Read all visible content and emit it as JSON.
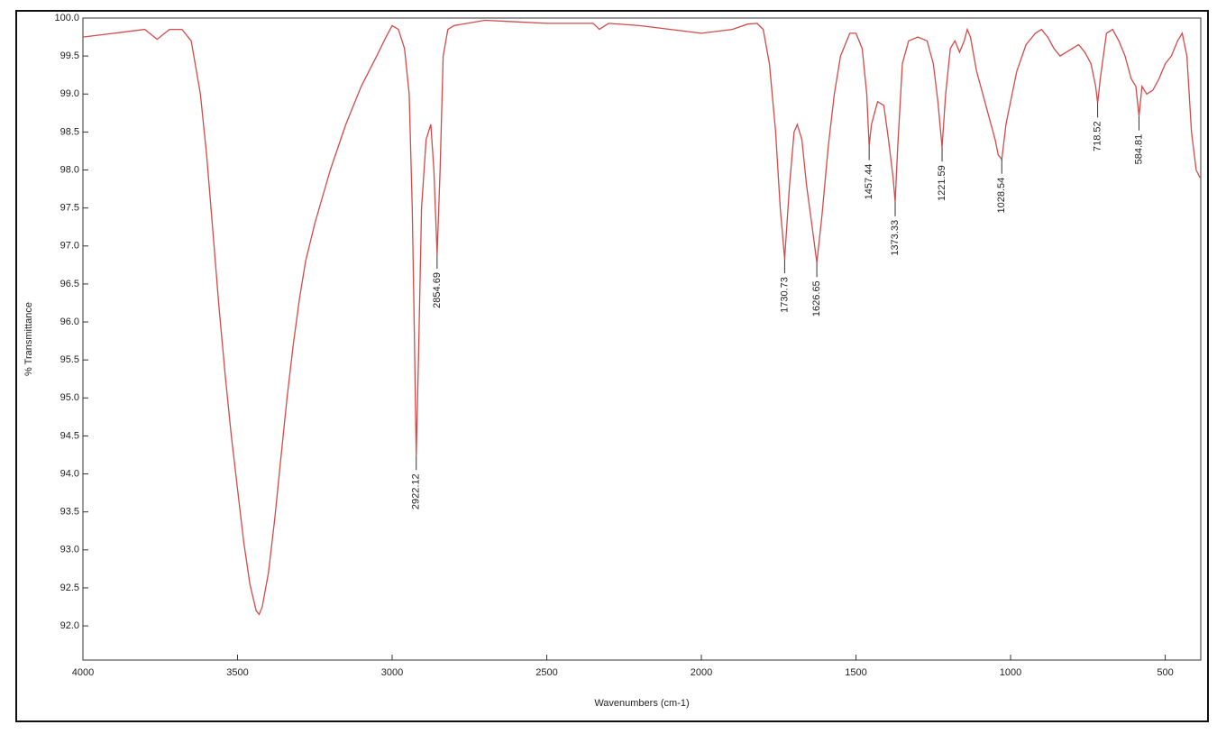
{
  "chart_data": {
    "type": "line",
    "xlabel": "Wavenumbers (cm-1)",
    "ylabel": "% Transmittance",
    "xlim": [
      4000,
      385
    ],
    "ylim": [
      91.55,
      100
    ],
    "xticks": [
      4000,
      3500,
      3000,
      2500,
      2000,
      1500,
      1000,
      500
    ],
    "yticks": [
      {
        "value": 92,
        "label": "92.0"
      },
      92.5,
      {
        "value": 93,
        "label": "93.0"
      },
      93.5,
      {
        "value": 94,
        "label": "94.0"
      },
      94.5,
      {
        "value": 95,
        "label": "95.0"
      },
      95.5,
      {
        "value": 96,
        "label": "96.0"
      },
      96.5,
      {
        "value": 97,
        "label": "97.0"
      },
      97.5,
      {
        "value": 98,
        "label": "98.0"
      },
      98.5,
      {
        "value": 99,
        "label": "99.0"
      },
      99.5,
      {
        "value": 100,
        "label": "100.0"
      }
    ],
    "series": [
      {
        "color": "#d24a4a",
        "x": [
          4000,
          3900,
          3800,
          3760,
          3720,
          3680,
          3650,
          3620,
          3600,
          3580,
          3560,
          3540,
          3520,
          3500,
          3480,
          3460,
          3440,
          3430,
          3420,
          3400,
          3380,
          3360,
          3340,
          3320,
          3300,
          3280,
          3250,
          3200,
          3150,
          3100,
          3050,
          3020,
          3000,
          2980,
          2960,
          2945,
          2935,
          2928,
          2922.12,
          2915,
          2905,
          2890,
          2875,
          2865,
          2854.69,
          2845,
          2835,
          2820,
          2800,
          2700,
          2600,
          2500,
          2400,
          2350,
          2330,
          2300,
          2200,
          2100,
          2000,
          1900,
          1850,
          1820,
          1800,
          1780,
          1760,
          1745,
          1730.73,
          1715,
          1700,
          1690,
          1675,
          1660,
          1640,
          1626.65,
          1610,
          1590,
          1570,
          1550,
          1520,
          1500,
          1480,
          1465,
          1457.44,
          1450,
          1430,
          1410,
          1395,
          1380,
          1373.33,
          1365,
          1350,
          1330,
          1300,
          1270,
          1250,
          1235,
          1221.59,
          1210,
          1195,
          1180,
          1165,
          1150,
          1140,
          1130,
          1110,
          1090,
          1070,
          1050,
          1040,
          1028.54,
          1015,
          1000,
          980,
          950,
          920,
          900,
          880,
          860,
          840,
          820,
          800,
          780,
          760,
          740,
          725,
          718.52,
          710,
          690,
          670,
          650,
          630,
          610,
          595,
          584.81,
          575,
          560,
          540,
          520,
          500,
          480,
          460,
          445,
          430,
          415,
          400,
          388
        ],
        "values": [
          99.75,
          99.8,
          99.85,
          99.72,
          99.85,
          99.85,
          99.7,
          99.0,
          98.2,
          97.2,
          96.2,
          95.3,
          94.5,
          93.8,
          93.1,
          92.55,
          92.2,
          92.15,
          92.25,
          92.7,
          93.4,
          94.2,
          95.0,
          95.7,
          96.3,
          96.8,
          97.3,
          98.0,
          98.6,
          99.1,
          99.5,
          99.75,
          99.9,
          99.85,
          99.6,
          99.0,
          97.5,
          95.8,
          94.24,
          95.5,
          97.5,
          98.4,
          98.6,
          98.0,
          96.89,
          98.0,
          99.5,
          99.85,
          99.9,
          99.97,
          99.95,
          99.93,
          99.93,
          99.93,
          99.85,
          99.93,
          99.9,
          99.85,
          99.8,
          99.85,
          99.92,
          99.93,
          99.85,
          99.4,
          98.5,
          97.5,
          96.83,
          97.8,
          98.5,
          98.6,
          98.4,
          97.8,
          97.2,
          96.78,
          97.4,
          98.3,
          99.0,
          99.5,
          99.8,
          99.8,
          99.6,
          99.0,
          98.32,
          98.6,
          98.9,
          98.85,
          98.4,
          97.9,
          97.58,
          98.3,
          99.4,
          99.7,
          99.75,
          99.7,
          99.4,
          98.9,
          98.3,
          99.0,
          99.6,
          99.7,
          99.55,
          99.7,
          99.85,
          99.75,
          99.3,
          99.0,
          98.7,
          98.4,
          98.2,
          98.14,
          98.6,
          98.9,
          99.3,
          99.65,
          99.8,
          99.85,
          99.75,
          99.6,
          99.5,
          99.55,
          99.6,
          99.65,
          99.55,
          99.4,
          99.1,
          98.88,
          99.2,
          99.8,
          99.85,
          99.7,
          99.5,
          99.2,
          99.1,
          98.71,
          99.1,
          99.0,
          99.05,
          99.2,
          99.4,
          99.5,
          99.7,
          99.8,
          99.5,
          98.5,
          98.0,
          97.9
        ]
      }
    ],
    "peaks": [
      {
        "x": 2922.12,
        "y": 94.24
      },
      {
        "x": 2854.69,
        "y": 96.89
      },
      {
        "x": 1730.73,
        "y": 96.83
      },
      {
        "x": 1626.65,
        "y": 96.78
      },
      {
        "x": 1457.44,
        "y": 98.32
      },
      {
        "x": 1373.33,
        "y": 97.58
      },
      {
        "x": 1221.59,
        "y": 98.3
      },
      {
        "x": 1028.54,
        "y": 98.14
      },
      {
        "x": 718.52,
        "y": 98.88
      },
      {
        "x": 584.81,
        "y": 98.71
      }
    ]
  }
}
